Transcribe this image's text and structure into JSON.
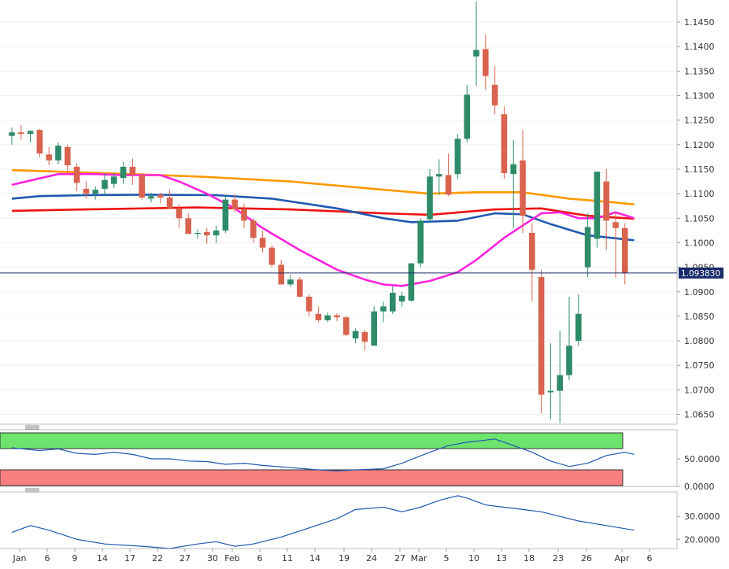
{
  "main_chart": {
    "y_ticks": [
      "1.1450",
      "1.1400",
      "1.1350",
      "1.1300",
      "1.1250",
      "1.1200",
      "1.1150",
      "1.1100",
      "1.1050",
      "1.1000",
      "1.0950",
      "1.0900",
      "1.0850",
      "1.0800",
      "1.0750",
      "1.0700",
      "1.0650"
    ],
    "ylim": [
      1.063,
      1.1495
    ],
    "price_label": "1.093830",
    "price_value": 1.09383,
    "up_color": "#2e8b68",
    "down_color": "#d9634f"
  },
  "x_labels": [
    "Jan",
    "6",
    "9",
    "14",
    "17",
    "22",
    "27",
    "30",
    "Feb",
    "6",
    "11",
    "14",
    "19",
    "24",
    "27",
    "Mar",
    "5",
    "10",
    "13",
    "18",
    "23",
    "26",
    "Apr",
    "6"
  ],
  "rsi_panel": {
    "y_ticks": [
      "50.0000",
      "0.0000"
    ],
    "ylim": [
      0,
      100
    ],
    "overbought_color": "#6ee36e",
    "oversold_color": "#f77f7f"
  },
  "adx_panel": {
    "y_ticks": [
      "30.0000",
      "20.0000"
    ],
    "ylim": [
      16,
      40
    ]
  },
  "chart_data": {
    "type": "candlestick",
    "candles": [
      [
        1.1218,
        1.1235,
        1.12,
        1.1225
      ],
      [
        1.1225,
        1.124,
        1.121,
        1.1222
      ],
      [
        1.1222,
        1.123,
        1.1205,
        1.1228
      ],
      [
        1.123,
        1.1232,
        1.1175,
        1.1182
      ],
      [
        1.118,
        1.1195,
        1.1158,
        1.1168
      ],
      [
        1.1168,
        1.1205,
        1.116,
        1.1198
      ],
      [
        1.1195,
        1.12,
        1.114,
        1.1158
      ],
      [
        1.1155,
        1.1162,
        1.1105,
        1.1122
      ],
      [
        1.111,
        1.1125,
        1.109,
        1.11
      ],
      [
        1.11,
        1.1115,
        1.1088,
        1.1108
      ],
      [
        1.111,
        1.1142,
        1.1095,
        1.1128
      ],
      [
        1.112,
        1.1142,
        1.1112,
        1.1135
      ],
      [
        1.1132,
        1.1165,
        1.112,
        1.1155
      ],
      [
        1.1155,
        1.1172,
        1.1118,
        1.1138
      ],
      [
        1.1138,
        1.1142,
        1.1088,
        1.1092
      ],
      [
        1.109,
        1.1102,
        1.1082,
        1.1095
      ],
      [
        1.1098,
        1.1102,
        1.108,
        1.1092
      ],
      [
        1.1092,
        1.1108,
        1.107,
        1.107
      ],
      [
        1.107,
        1.1078,
        1.103,
        1.105
      ],
      [
        1.105,
        1.106,
        1.1018,
        1.1018
      ],
      [
        1.1018,
        1.1028,
        1.1008,
        1.102
      ],
      [
        1.1022,
        1.103,
        1.0998,
        1.1015
      ],
      [
        1.1015,
        1.1035,
        1.1,
        1.1025
      ],
      [
        1.1025,
        1.1098,
        1.102,
        1.1088
      ],
      [
        1.1088,
        1.11,
        1.1062,
        1.1068
      ],
      [
        1.1068,
        1.108,
        1.103,
        1.1045
      ],
      [
        1.1045,
        1.105,
        1.1,
        1.101
      ],
      [
        1.101,
        1.1025,
        1.098,
        1.099
      ],
      [
        1.099,
        1.0995,
        1.095,
        1.0955
      ],
      [
        1.0955,
        1.0965,
        1.0915,
        1.0915
      ],
      [
        1.0915,
        1.0935,
        1.091,
        1.0925
      ],
      [
        1.0925,
        1.093,
        1.0888,
        1.089
      ],
      [
        1.089,
        1.0895,
        1.085,
        1.086
      ],
      [
        1.0855,
        1.087,
        1.0838,
        1.0842
      ],
      [
        1.0842,
        1.0858,
        1.0838,
        1.0852
      ],
      [
        1.0852,
        1.0856,
        1.084,
        1.0848
      ],
      [
        1.0848,
        1.085,
        1.081,
        1.0812
      ],
      [
        1.0805,
        1.0825,
        1.0795,
        1.082
      ],
      [
        1.0818,
        1.0822,
        1.078,
        1.0798
      ],
      [
        1.079,
        1.087,
        1.079,
        1.086
      ],
      [
        1.086,
        1.088,
        1.0838,
        1.087
      ],
      [
        1.086,
        1.0912,
        1.0855,
        1.0898
      ],
      [
        1.088,
        1.09,
        1.087,
        1.0892
      ],
      [
        1.0882,
        1.0958,
        1.088,
        1.0958
      ],
      [
        1.0958,
        1.105,
        1.095,
        1.1045
      ],
      [
        1.1048,
        1.115,
        1.104,
        1.1135
      ],
      [
        1.1135,
        1.117,
        1.1098,
        1.114
      ],
      [
        1.1138,
        1.1182,
        1.1095,
        1.1098
      ],
      [
        1.114,
        1.1222,
        1.113,
        1.1212
      ],
      [
        1.1212,
        1.1322,
        1.1205,
        1.1302
      ],
      [
        1.138,
        1.1492,
        1.132,
        1.1393
      ],
      [
        1.1395,
        1.1425,
        1.1312,
        1.134
      ],
      [
        1.1322,
        1.136,
        1.1262,
        1.128
      ],
      [
        1.1262,
        1.1278,
        1.113,
        1.1142
      ],
      [
        1.114,
        1.121,
        1.103,
        1.116
      ],
      [
        1.1168,
        1.123,
        1.102,
        1.1055
      ],
      [
        1.102,
        1.104,
        1.088,
        1.0945
      ],
      [
        1.093,
        1.0945,
        1.0652,
        1.069
      ],
      [
        1.0695,
        1.0795,
        1.064,
        1.0698
      ],
      [
        1.0698,
        1.082,
        1.0632,
        1.073
      ],
      [
        1.073,
        1.089,
        1.072,
        1.079
      ],
      [
        1.08,
        1.0895,
        1.079,
        1.0855
      ],
      [
        1.095,
        1.106,
        1.093,
        1.1032
      ],
      [
        1.1008,
        1.1142,
        1.099,
        1.1145
      ],
      [
        1.1125,
        1.115,
        1.0985,
        1.1045
      ],
      [
        1.1042,
        1.1062,
        1.0928,
        1.103
      ],
      [
        1.103,
        1.104,
        1.0915,
        1.0938
      ]
    ],
    "moving_averages": [
      {
        "color": "#ff9900",
        "values": [
          [
            0,
            1.1148
          ],
          [
            10,
            1.1142
          ],
          [
            20,
            1.1135
          ],
          [
            30,
            1.1125
          ],
          [
            40,
            1.1108
          ],
          [
            45,
            1.11
          ],
          [
            50,
            1.1103
          ],
          [
            55,
            1.1103
          ],
          [
            60,
            1.109
          ],
          [
            65,
            1.1082
          ],
          [
            67,
            1.1078
          ]
        ]
      },
      {
        "color": "#ee1111",
        "values": [
          [
            0,
            1.1065
          ],
          [
            8,
            1.1068
          ],
          [
            20,
            1.1072
          ],
          [
            30,
            1.1068
          ],
          [
            40,
            1.106
          ],
          [
            45,
            1.1057
          ],
          [
            52,
            1.1068
          ],
          [
            57,
            1.107
          ],
          [
            62,
            1.1055
          ],
          [
            67,
            1.1049
          ]
        ]
      },
      {
        "color": "#1f58b0",
        "values": [
          [
            0,
            1.109
          ],
          [
            3,
            1.1095
          ],
          [
            8,
            1.1097
          ],
          [
            14,
            1.1098
          ],
          [
            22,
            1.1097
          ],
          [
            28,
            1.109
          ],
          [
            35,
            1.107
          ],
          [
            40,
            1.105
          ],
          [
            43,
            1.1042
          ],
          [
            48,
            1.1045
          ],
          [
            52,
            1.106
          ],
          [
            55,
            1.1058
          ],
          [
            58,
            1.1038
          ],
          [
            62,
            1.1015
          ],
          [
            67,
            1.1005
          ]
        ]
      },
      {
        "color": "#ff22dd",
        "values": [
          [
            0,
            1.1118
          ],
          [
            5,
            1.114
          ],
          [
            9,
            1.114
          ],
          [
            12,
            1.1138
          ],
          [
            16,
            1.1138
          ],
          [
            18,
            1.1125
          ],
          [
            21,
            1.11
          ],
          [
            24,
            1.107
          ],
          [
            27,
            1.103
          ],
          [
            31,
            1.0985
          ],
          [
            35,
            1.0945
          ],
          [
            38,
            1.0925
          ],
          [
            40,
            1.0915
          ],
          [
            42,
            1.0912
          ],
          [
            45,
            1.0922
          ],
          [
            48,
            1.094
          ],
          [
            50,
            1.0965
          ],
          [
            53,
            1.101
          ],
          [
            55,
            1.1035
          ],
          [
            57,
            1.106
          ],
          [
            59,
            1.1062
          ],
          [
            61,
            1.105
          ],
          [
            63,
            1.105
          ],
          [
            65,
            1.1062
          ],
          [
            67,
            1.105
          ]
        ]
      }
    ],
    "rsi": {
      "color": "#1f58b0",
      "values": [
        [
          0,
          70
        ],
        [
          3,
          65
        ],
        [
          5,
          68
        ],
        [
          7,
          60
        ],
        [
          9,
          58
        ],
        [
          11,
          62
        ],
        [
          13,
          58
        ],
        [
          15,
          50
        ],
        [
          17,
          50
        ],
        [
          19,
          46
        ],
        [
          21,
          45
        ],
        [
          23,
          40
        ],
        [
          25,
          42
        ],
        [
          27,
          38
        ],
        [
          30,
          34
        ],
        [
          33,
          30
        ],
        [
          35,
          28
        ],
        [
          37,
          30
        ],
        [
          40,
          32
        ],
        [
          42,
          42
        ],
        [
          45,
          62
        ],
        [
          47,
          74
        ],
        [
          49,
          80
        ],
        [
          52,
          86
        ],
        [
          54,
          74
        ],
        [
          56,
          62
        ],
        [
          58,
          46
        ],
        [
          60,
          36
        ],
        [
          62,
          42
        ],
        [
          64,
          56
        ],
        [
          66,
          62
        ],
        [
          67,
          58
        ]
      ]
    },
    "adx": {
      "color": "#1f58b0",
      "values": [
        [
          0,
          23
        ],
        [
          2,
          26
        ],
        [
          4,
          24
        ],
        [
          7,
          20
        ],
        [
          10,
          18
        ],
        [
          14,
          17
        ],
        [
          17,
          16
        ],
        [
          20,
          18
        ],
        [
          22,
          19
        ],
        [
          24,
          17
        ],
        [
          26,
          18
        ],
        [
          29,
          21
        ],
        [
          32,
          25
        ],
        [
          35,
          29
        ],
        [
          37,
          33
        ],
        [
          40,
          34
        ],
        [
          42,
          32
        ],
        [
          44,
          34
        ],
        [
          46,
          37
        ],
        [
          48,
          39
        ],
        [
          49,
          38
        ],
        [
          51,
          35
        ],
        [
          53,
          34
        ],
        [
          55,
          33
        ],
        [
          57,
          32
        ],
        [
          59,
          30
        ],
        [
          61,
          28
        ],
        [
          64,
          26
        ],
        [
          67,
          24
        ]
      ]
    }
  }
}
